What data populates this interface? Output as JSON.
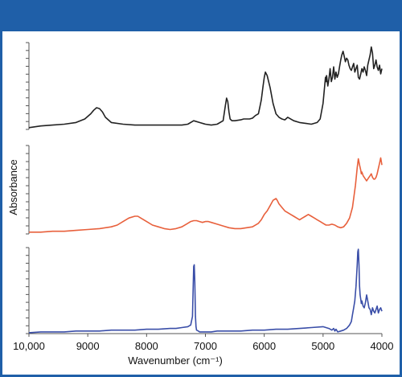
{
  "header": {
    "color": "#1f5fa8"
  },
  "chart_data": {
    "type": "line",
    "xlabel": "Wavenumber (cm⁻¹)",
    "ylabel": "Absorbance",
    "xlim": [
      10000,
      4000
    ],
    "x_ticks": [
      {
        "value": 10000,
        "label": "10,000"
      },
      {
        "value": 9000,
        "label": "9000"
      },
      {
        "value": 8000,
        "label": "8000"
      },
      {
        "value": 7000,
        "label": "7000"
      },
      {
        "value": 6000,
        "label": "6000"
      },
      {
        "value": 5000,
        "label": "5000"
      },
      {
        "value": 4000,
        "label": "4000"
      }
    ],
    "y_tick_labels": "none",
    "grid": false,
    "legend": "none",
    "series": [
      {
        "color": "#222222",
        "ylim": [
          0,
          1
        ],
        "x": [
          10000,
          9800,
          9600,
          9400,
          9200,
          9050,
          8950,
          8900,
          8850,
          8800,
          8750,
          8700,
          8600,
          8400,
          8200,
          8000,
          7800,
          7600,
          7400,
          7300,
          7200,
          7100,
          7000,
          6900,
          6800,
          6700,
          6660,
          6640,
          6620,
          6600,
          6580,
          6550,
          6500,
          6400,
          6350,
          6300,
          6250,
          6200,
          6150,
          6100,
          6080,
          6050,
          6020,
          6000,
          5980,
          5950,
          5900,
          5850,
          5800,
          5750,
          5700,
          5650,
          5600,
          5500,
          5400,
          5300,
          5200,
          5100,
          5050,
          5000,
          4980,
          4960,
          4950,
          4940,
          4920,
          4900,
          4880,
          4860,
          4840,
          4820,
          4800,
          4780,
          4760,
          4740,
          4720,
          4700,
          4680,
          4660,
          4640,
          4620,
          4600,
          4580,
          4560,
          4540,
          4520,
          4500,
          4480,
          4460,
          4440,
          4420,
          4400,
          4380,
          4360,
          4340,
          4320,
          4300,
          4280,
          4260,
          4240,
          4220,
          4200,
          4180,
          4160,
          4140,
          4120,
          4100,
          4080,
          4060,
          4040,
          4020,
          4000
        ],
        "y": [
          0.02,
          0.04,
          0.05,
          0.06,
          0.08,
          0.12,
          0.18,
          0.22,
          0.25,
          0.24,
          0.2,
          0.14,
          0.08,
          0.06,
          0.05,
          0.05,
          0.05,
          0.05,
          0.05,
          0.06,
          0.1,
          0.08,
          0.06,
          0.05,
          0.06,
          0.1,
          0.28,
          0.36,
          0.32,
          0.2,
          0.12,
          0.1,
          0.1,
          0.11,
          0.12,
          0.12,
          0.12,
          0.13,
          0.16,
          0.18,
          0.24,
          0.34,
          0.5,
          0.6,
          0.66,
          0.62,
          0.48,
          0.3,
          0.18,
          0.14,
          0.12,
          0.11,
          0.14,
          0.1,
          0.08,
          0.07,
          0.06,
          0.08,
          0.12,
          0.3,
          0.45,
          0.6,
          0.55,
          0.62,
          0.5,
          0.58,
          0.7,
          0.55,
          0.6,
          0.72,
          0.58,
          0.66,
          0.6,
          0.64,
          0.72,
          0.8,
          0.86,
          0.9,
          0.84,
          0.78,
          0.82,
          0.8,
          0.74,
          0.7,
          0.68,
          0.72,
          0.76,
          0.66,
          0.7,
          0.74,
          0.6,
          0.58,
          0.64,
          0.7,
          0.66,
          0.72,
          0.68,
          0.62,
          0.74,
          0.8,
          0.86,
          0.95,
          0.88,
          0.7,
          0.74,
          0.8,
          0.72,
          0.68,
          0.74,
          0.64,
          0.7
        ]
      },
      {
        "color": "#e8603c",
        "ylim": [
          0,
          1
        ],
        "x": [
          10000,
          9800,
          9600,
          9400,
          9200,
          9000,
          8800,
          8600,
          8500,
          8400,
          8300,
          8200,
          8150,
          8100,
          8000,
          7900,
          7800,
          7700,
          7600,
          7500,
          7400,
          7300,
          7250,
          7200,
          7150,
          7100,
          7050,
          7000,
          6950,
          6900,
          6800,
          6700,
          6600,
          6500,
          6400,
          6300,
          6200,
          6100,
          6050,
          6000,
          5950,
          5900,
          5850,
          5800,
          5780,
          5750,
          5700,
          5650,
          5600,
          5550,
          5500,
          5450,
          5400,
          5350,
          5300,
          5250,
          5200,
          5150,
          5100,
          5050,
          5000,
          4950,
          4900,
          4850,
          4800,
          4750,
          4700,
          4650,
          4600,
          4550,
          4500,
          4450,
          4420,
          4400,
          4380,
          4360,
          4350,
          4340,
          4320,
          4300,
          4280,
          4260,
          4240,
          4220,
          4200,
          4180,
          4160,
          4140,
          4120,
          4100,
          4080,
          4060,
          4040,
          4020,
          4000
        ],
        "y": [
          0.02,
          0.02,
          0.03,
          0.03,
          0.04,
          0.05,
          0.06,
          0.08,
          0.1,
          0.14,
          0.18,
          0.2,
          0.2,
          0.18,
          0.14,
          0.1,
          0.08,
          0.06,
          0.05,
          0.06,
          0.08,
          0.12,
          0.14,
          0.15,
          0.15,
          0.14,
          0.13,
          0.14,
          0.14,
          0.13,
          0.11,
          0.09,
          0.07,
          0.06,
          0.06,
          0.07,
          0.08,
          0.12,
          0.16,
          0.22,
          0.26,
          0.32,
          0.38,
          0.4,
          0.38,
          0.34,
          0.3,
          0.26,
          0.24,
          0.22,
          0.2,
          0.18,
          0.16,
          0.18,
          0.2,
          0.22,
          0.2,
          0.18,
          0.16,
          0.14,
          0.12,
          0.1,
          0.1,
          0.11,
          0.1,
          0.08,
          0.07,
          0.08,
          0.12,
          0.18,
          0.3,
          0.55,
          0.75,
          0.85,
          0.78,
          0.72,
          0.68,
          0.7,
          0.66,
          0.64,
          0.62,
          0.6,
          0.62,
          0.64,
          0.66,
          0.68,
          0.64,
          0.62,
          0.62,
          0.64,
          0.68,
          0.74,
          0.8,
          0.86,
          0.78
        ]
      },
      {
        "color": "#3a4ea8",
        "ylim": [
          0,
          1
        ],
        "x": [
          10000,
          9800,
          9600,
          9400,
          9200,
          9000,
          8800,
          8600,
          8400,
          8200,
          8000,
          7800,
          7600,
          7500,
          7400,
          7300,
          7250,
          7220,
          7200,
          7190,
          7180,
          7170,
          7160,
          7150,
          7120,
          7100,
          7050,
          7000,
          6900,
          6800,
          6600,
          6400,
          6200,
          6000,
          5800,
          5600,
          5400,
          5200,
          5000,
          4900,
          4850,
          4820,
          4800,
          4780,
          4750,
          4700,
          4650,
          4600,
          4550,
          4520,
          4500,
          4480,
          4460,
          4440,
          4420,
          4410,
          4400,
          4390,
          4380,
          4370,
          4360,
          4350,
          4340,
          4320,
          4300,
          4280,
          4260,
          4240,
          4220,
          4200,
          4180,
          4160,
          4140,
          4120,
          4100,
          4080,
          4060,
          4040,
          4020,
          4000
        ],
        "y": [
          0.01,
          0.02,
          0.02,
          0.02,
          0.03,
          0.03,
          0.03,
          0.04,
          0.04,
          0.04,
          0.05,
          0.05,
          0.06,
          0.06,
          0.07,
          0.08,
          0.1,
          0.2,
          0.78,
          0.8,
          0.6,
          0.2,
          0.08,
          0.04,
          0.03,
          0.02,
          0.02,
          0.02,
          0.02,
          0.03,
          0.03,
          0.03,
          0.04,
          0.04,
          0.05,
          0.05,
          0.06,
          0.07,
          0.08,
          0.06,
          0.04,
          0.06,
          0.03,
          0.05,
          0.02,
          0.03,
          0.04,
          0.06,
          0.1,
          0.14,
          0.22,
          0.3,
          0.38,
          0.55,
          0.8,
          0.95,
          0.98,
          0.8,
          0.55,
          0.45,
          0.4,
          0.35,
          0.38,
          0.32,
          0.3,
          0.36,
          0.45,
          0.38,
          0.3,
          0.28,
          0.22,
          0.3,
          0.26,
          0.24,
          0.28,
          0.32,
          0.24,
          0.28,
          0.3,
          0.26
        ]
      }
    ]
  }
}
